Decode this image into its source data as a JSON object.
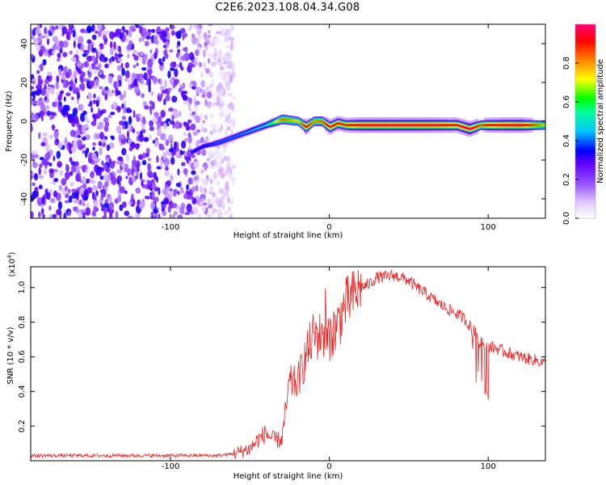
{
  "page": {
    "title": "C2E6.2023.108.04.34.G08"
  },
  "chart_data": [
    {
      "type": "heatmap",
      "title": "",
      "xlabel": "Height of straight line (km)",
      "ylabel": "Frequency (Hz)",
      "xlim": [
        -188,
        136
      ],
      "ylim": [
        -50,
        50
      ],
      "xticks": [
        -100,
        0,
        100
      ],
      "yticks": [
        -40,
        -20,
        0,
        20,
        40
      ],
      "xtick_labels": [
        "-100",
        "0",
        "100"
      ],
      "ytick_labels": [
        "-40",
        "-20",
        "0",
        "20",
        "40"
      ],
      "colorbar": {
        "label": "Normalized spectral amplitude",
        "range": [
          0,
          1
        ],
        "ticks": [
          0.0,
          0.2,
          0.4,
          0.6,
          0.8
        ],
        "tick_labels": [
          "0.0",
          "0.2",
          "0.4",
          "0.6",
          "0.8"
        ],
        "colors": [
          "#ffffff",
          "#6600ff",
          "#0000ff",
          "#00ffff",
          "#00ff00",
          "#ffff00",
          "#ff8000",
          "#ff0000",
          "#ff0066"
        ]
      },
      "noise_region": {
        "x_range": [
          -188,
          -60
        ],
        "y_range": [
          -50,
          50
        ],
        "amplitude": 0.25
      },
      "signal_track": {
        "x": [
          -87,
          -80,
          -70,
          -60,
          -50,
          -40,
          -30,
          -20,
          -15,
          -10,
          -5,
          0,
          5,
          10,
          20,
          40,
          60,
          80,
          88,
          95,
          100,
          120,
          136
        ],
        "y": [
          -16,
          -13,
          -11,
          -8,
          -5,
          -2,
          1,
          0,
          -3,
          0,
          0,
          -3,
          -1,
          -2,
          -2,
          -2,
          -2,
          -2,
          -4,
          -2,
          -2,
          -2,
          -2
        ],
        "amplitude": [
          0.3,
          0.3,
          0.35,
          0.35,
          0.4,
          0.45,
          0.8,
          0.7,
          0.9,
          0.75,
          0.8,
          0.9,
          0.85,
          0.85,
          0.95,
          0.95,
          0.95,
          0.9,
          0.95,
          0.8,
          0.9,
          0.95,
          0.7
        ]
      }
    },
    {
      "type": "line",
      "title": "",
      "xlabel": "Height of straight line (km)",
      "ylabel": "SNR (10 * v/v)",
      "y_multiplier_label": "(x10",
      "y_multiplier_exponent": "4",
      "xlim": [
        -188,
        136
      ],
      "ylim": [
        0,
        1.12
      ],
      "xticks": [
        -100,
        0,
        100
      ],
      "yticks": [
        0.2,
        0.4,
        0.6,
        0.8,
        1.0
      ],
      "xtick_labels": [
        "-100",
        "0",
        "100"
      ],
      "ytick_labels": [
        "0.2",
        "0.4",
        "0.6",
        "0.8",
        "1.0"
      ],
      "series": [
        {
          "color": "#ee2222",
          "x": [
            -188,
            -150,
            -100,
            -70,
            -60,
            -50,
            -45,
            -40,
            -35,
            -30,
            -25,
            -20,
            -15,
            -10,
            -5,
            0,
            5,
            10,
            15,
            20,
            25,
            30,
            35,
            40,
            45,
            50,
            55,
            60,
            70,
            80,
            85,
            90,
            95,
            100,
            105,
            110,
            120,
            130,
            136
          ],
          "y": [
            0.03,
            0.03,
            0.03,
            0.03,
            0.04,
            0.07,
            0.12,
            0.16,
            0.12,
            0.12,
            0.45,
            0.45,
            0.6,
            0.72,
            0.72,
            0.72,
            0.78,
            0.9,
            0.95,
            1.0,
            1.02,
            1.06,
            1.06,
            1.07,
            1.06,
            1.04,
            1.0,
            0.97,
            0.9,
            0.85,
            0.82,
            0.76,
            0.7,
            0.66,
            0.65,
            0.63,
            0.6,
            0.58,
            0.56
          ]
        }
      ]
    }
  ]
}
